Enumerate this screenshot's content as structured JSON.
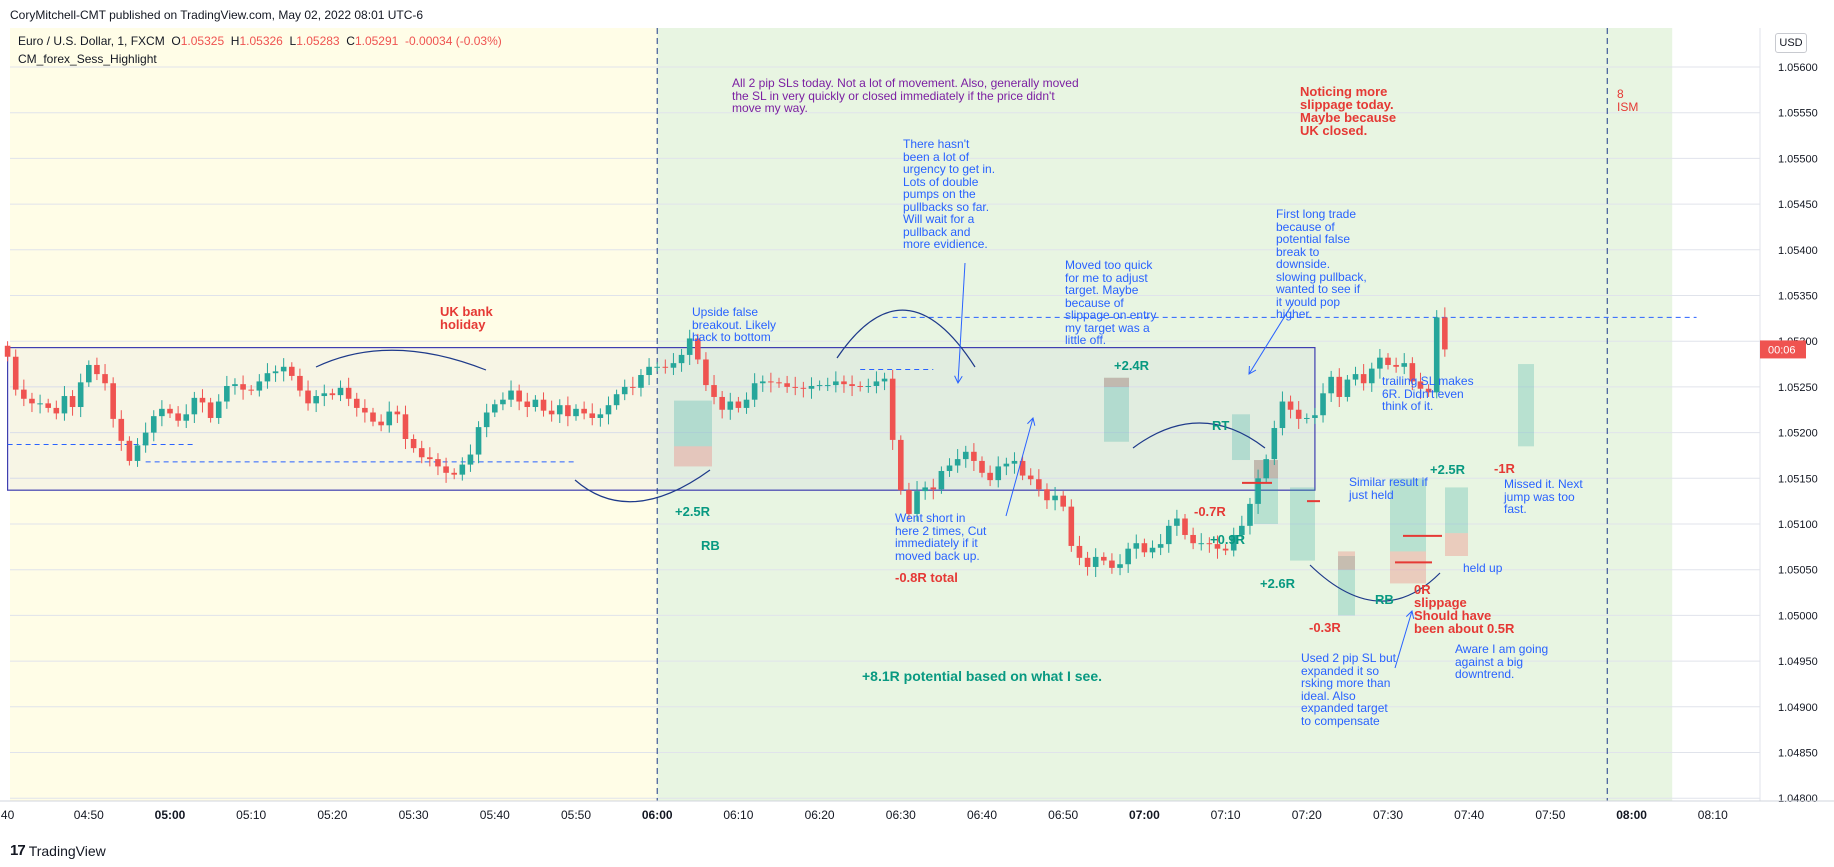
{
  "header": {
    "published_line": "CoryMitchell-CMT published on TradingView.com, May 02, 2022 08:01 UTC-6"
  },
  "legend": {
    "symbol": "Euro / U.S. Dollar, 1, FXCM",
    "open_label": "O",
    "open": "1.05325",
    "high_label": "H",
    "high": "1.05326",
    "low_label": "L",
    "low": "1.05283",
    "close_label": "C",
    "close": "1.05291",
    "change": "-0.00034 (-0.03%)",
    "indicator": "CM_forex_Sess_Highlight"
  },
  "currency_button": "USD",
  "price_tag": "00:06",
  "footer": {
    "brand": "TradingView"
  },
  "colors": {
    "up": "#26a69a",
    "down": "#ef5350",
    "asia_session": "#fffde7",
    "london_session": "#e8f5e2",
    "annotation_blue": "#2962ff",
    "annotation_red": "#e53935",
    "annotation_green": "#089981"
  },
  "chart_data": {
    "type": "candlestick",
    "symbol": "EURUSD",
    "timeframe": "1 minute",
    "ylim": [
      1.0479,
      1.0567
    ],
    "y_ticks": [
      "1.05600",
      "1.05550",
      "1.05500",
      "1.05450",
      "1.05400",
      "1.05350",
      "1.05300",
      "1.05250",
      "1.05200",
      "1.05150",
      "1.05100",
      "1.05050",
      "1.05000",
      "1.04950",
      "1.04900",
      "1.04850",
      "1.04800"
    ],
    "x_ticks": [
      "40",
      "04:50",
      "05:00",
      "05:10",
      "05:20",
      "05:30",
      "05:40",
      "05:50",
      "06:00",
      "06:10",
      "06:20",
      "06:30",
      "06:40",
      "06:50",
      "07:00",
      "07:10",
      "07:20",
      "07:30",
      "07:40",
      "07:50",
      "08:00",
      "08:10"
    ],
    "bold_x_ticks": [
      "05:00",
      "06:00",
      "07:00",
      "08:00"
    ],
    "x_start_minutes": 280,
    "x_end_minutes": 491,
    "sessions": [
      {
        "start": 280,
        "end": 360
      },
      {
        "start": 360,
        "end": 485
      }
    ],
    "range_box": {
      "start": 280,
      "end": 441,
      "top": 1.05293,
      "bottom": 1.05137
    },
    "horizontal_levels": [
      {
        "price": 1.05326,
        "start": 389,
        "end": 488
      },
      {
        "price": 1.05168,
        "start": 297,
        "end": 350
      },
      {
        "price": 1.05187,
        "start": 280,
        "end": 303
      },
      {
        "price": 1.05269,
        "start": 385,
        "end": 394
      }
    ],
    "session_lines": [
      360,
      477
    ],
    "closes": [
      1.05283,
      1.05247,
      1.05237,
      1.05232,
      1.05232,
      1.05227,
      1.05221,
      1.0524,
      1.05228,
      1.05255,
      1.05274,
      1.05264,
      1.05254,
      1.05215,
      1.05191,
      1.05169,
      1.05186,
      1.052,
      1.05218,
      1.05226,
      1.05221,
      1.05213,
      1.0522,
      1.05238,
      1.05233,
      1.05216,
      1.05234,
      1.05251,
      1.05253,
      1.05247,
      1.05246,
      1.05256,
      1.05265,
      1.05267,
      1.05272,
      1.05262,
      1.05246,
      1.05232,
      1.0524,
      1.05243,
      1.05241,
      1.05249,
      1.05237,
      1.05227,
      1.05222,
      1.05212,
      1.05208,
      1.05223,
      1.0522,
      1.05193,
      1.05183,
      1.05173,
      1.05171,
      1.05163,
      1.05156,
      1.05154,
      1.05165,
      1.05176,
      1.05206,
      1.05222,
      1.05231,
      1.05236,
      1.05246,
      1.05234,
      1.05228,
      1.05236,
      1.05224,
      1.0522,
      1.0523,
      1.05218,
      1.05226,
      1.05221,
      1.05216,
      1.0522,
      1.0523,
      1.05242,
      1.0525,
      1.05249,
      1.05263,
      1.05272,
      1.05272,
      1.05271,
      1.05276,
      1.05285,
      1.05303,
      1.0528,
      1.05252,
      1.05239,
      1.05225,
      1.05234,
      1.05227,
      1.05236,
      1.05254,
      1.05256,
      1.05255,
      1.05254,
      1.0525,
      1.05249,
      1.05248,
      1.05251,
      1.05252,
      1.05252,
      1.05256,
      1.05253,
      1.05251,
      1.0525,
      1.05251,
      1.05256,
      1.05259,
      1.05192,
      1.05137,
      1.05111,
      1.05136,
      1.0514,
      1.05138,
      1.05158,
      1.05164,
      1.05171,
      1.05179,
      1.05169,
      1.05156,
      1.05148,
      1.05163,
      1.05166,
      1.05169,
      1.05153,
      1.05149,
      1.05138,
      1.05126,
      1.05131,
      1.05119,
      1.05076,
      1.05063,
      1.05053,
      1.05064,
      1.0506,
      1.05052,
      1.05056,
      1.05073,
      1.05079,
      1.05069,
      1.05074,
      1.05078,
      1.05098,
      1.05106,
      1.05088,
      1.05079,
      1.05079,
      1.05078,
      1.05073,
      1.05071,
      1.05088,
      1.05098,
      1.05122,
      1.0515,
      1.05171,
      1.05205,
      1.05234,
      1.05225,
      1.05215,
      1.05216,
      1.05219,
      1.05243,
      1.05261,
      1.05239,
      1.05258,
      1.05264,
      1.05254,
      1.0527,
      1.05282,
      1.05274,
      1.05272,
      1.05276,
      1.05256,
      1.05248,
      1.05244,
      1.05326,
      1.05291
    ],
    "first_candle_minute": 280
  },
  "annotations": [
    {
      "id": "uk-bank-holiday",
      "text": "UK bank\nholiday",
      "style": "red"
    },
    {
      "id": "upside-false-breakout",
      "text": "Upside false\nbreakout. Likely\nback to bottom",
      "style": "blue"
    },
    {
      "id": "all-2-pip",
      "text": "All 2 pip SLs today. Not a lot of movement. Also, generally moved\nthe SL in very quickly or closed immediately if the price didn't\nmove my way.",
      "style": "purple"
    },
    {
      "id": "no-urgency",
      "text": "There hasn't\nbeen a lot of\nurgency to get in.\nLots of double\npumps on the\npullbacks so far.\nWill wait for a\npullback and\nmore evidience.",
      "style": "blue"
    },
    {
      "id": "moved-too-quick",
      "text": "Moved too quick\nfor me to adjust\ntarget. Maybe\nbecause of\nslippage on entry\nmy target was a\nlittle off.",
      "style": "blue"
    },
    {
      "id": "first-long",
      "text": "First long trade\nbecause of\npotential false\nbreak to\ndownside.\nslowing pullback,\nwanted to see if\nit would pop\nhigher.",
      "style": "blue"
    },
    {
      "id": "noticing-slippage",
      "text": "Noticing more\nslippage today.\nMaybe because\nUK closed.",
      "style": "red"
    },
    {
      "id": "ism",
      "text": "8\nISM",
      "style": "redn"
    },
    {
      "id": "went-short",
      "text": "Went short in\nhere 2 times, Cut\nimmediately if it\nmoved back up.",
      "style": "blue"
    },
    {
      "id": "total",
      "text": "-0.8R total",
      "style": "red"
    },
    {
      "id": "potential",
      "text": "+8.1R potential based on what I see.",
      "style": "green"
    },
    {
      "id": "plus-2-5r",
      "text": "+2.5R",
      "style": "green"
    },
    {
      "id": "rb-1",
      "text": "RB",
      "style": "green"
    },
    {
      "id": "plus-2-4r",
      "text": "+2.4R",
      "style": "green"
    },
    {
      "id": "rt",
      "text": "RT",
      "style": "green"
    },
    {
      "id": "minus-0-7r",
      "text": "-0.7R",
      "style": "red"
    },
    {
      "id": "plus-0-9r",
      "text": "+0.9R",
      "style": "green"
    },
    {
      "id": "plus-2-6r",
      "text": "+2.6R",
      "style": "green"
    },
    {
      "id": "minus-0-3r",
      "text": "-0.3R",
      "style": "red"
    },
    {
      "id": "rb-2",
      "text": "RB",
      "style": "green"
    },
    {
      "id": "zero-r",
      "text": "0R\nslippage\nShould have\nbeen about 0.5R",
      "style": "red"
    },
    {
      "id": "similar-result",
      "text": "Similar result if\njust held",
      "style": "blue"
    },
    {
      "id": "plus-2-5r-b",
      "text": "+2.5R",
      "style": "green"
    },
    {
      "id": "held-up",
      "text": "held up",
      "style": "blue"
    },
    {
      "id": "minus-1r",
      "text": "-1R",
      "style": "red"
    },
    {
      "id": "missed-it",
      "text": "Missed it. Next\njump was too\nfast.",
      "style": "blue"
    },
    {
      "id": "trailing-sl",
      "text": "trailing SL makes\n6R. Didn't even\nthink of it.",
      "style": "blue"
    },
    {
      "id": "aware",
      "text": "Aware I am going\nagainst a big\ndowntrend.",
      "style": "blue"
    },
    {
      "id": "used-2-pip",
      "text": "Used 2 pip SL but\nexpanded it so\nrsking more than\nideal. Also\nexpanded target\nto compensate",
      "style": "blue"
    }
  ]
}
